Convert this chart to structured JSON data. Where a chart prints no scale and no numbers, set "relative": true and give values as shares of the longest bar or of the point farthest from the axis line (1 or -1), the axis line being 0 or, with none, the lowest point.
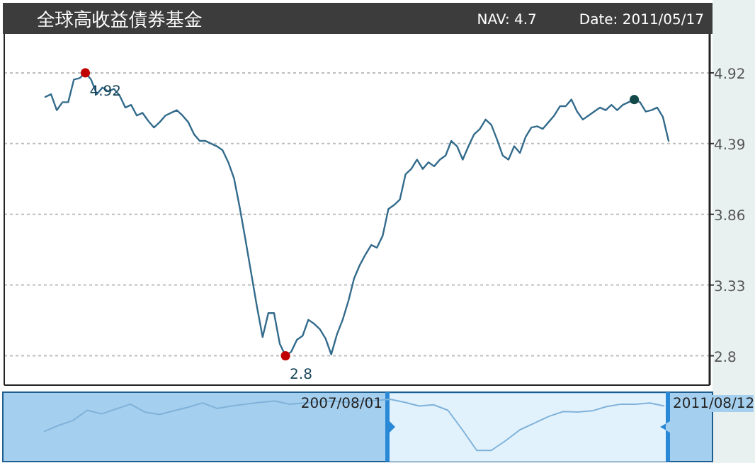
{
  "chart_data": [
    {
      "type": "line",
      "title": "全球高收益債券基金",
      "annotations": [
        "NAV: 4.7",
        "Date: 2011/05/17"
      ],
      "categories": [
        null,
        null,
        null,
        null,
        null,
        null,
        null,
        null,
        null,
        null,
        null,
        null,
        null,
        null,
        null,
        null,
        null,
        null,
        null,
        null,
        null,
        null,
        null,
        null,
        null,
        null,
        null,
        null,
        null,
        null,
        null,
        null,
        null,
        null,
        null,
        null,
        null,
        null,
        null,
        null,
        null,
        null,
        null,
        null,
        null,
        null,
        null,
        null,
        null,
        null,
        null,
        null,
        null,
        null,
        null,
        null,
        null,
        null,
        null,
        null,
        null,
        null,
        null,
        null,
        null,
        null,
        null,
        null,
        null,
        null,
        null,
        null,
        null,
        null,
        null,
        null,
        null,
        null,
        null,
        null,
        null,
        null,
        null,
        null,
        null,
        null,
        null,
        null,
        null,
        null,
        null,
        null,
        null,
        null,
        null,
        null,
        null,
        null,
        null,
        null,
        null,
        null,
        null,
        null,
        null,
        null,
        null,
        null,
        null,
        null
      ],
      "series": [
        {
          "color": "#336b8c",
          "values": [
            4.74,
            4.76,
            4.64,
            4.7,
            4.7,
            4.87,
            4.88,
            4.92,
            4.87,
            4.76,
            4.81,
            4.78,
            4.8,
            4.75,
            4.66,
            4.68,
            4.6,
            4.62,
            4.56,
            4.51,
            4.55,
            4.6,
            4.62,
            4.64,
            4.6,
            4.55,
            4.46,
            4.41,
            4.41,
            4.39,
            4.37,
            4.34,
            4.25,
            4.13,
            3.91,
            3.67,
            3.42,
            3.17,
            2.94,
            3.12,
            3.12,
            2.89,
            2.8,
            2.83,
            2.92,
            2.95,
            3.07,
            3.04,
            3.0,
            2.93,
            2.81,
            2.96,
            3.07,
            3.21,
            3.38,
            3.48,
            3.56,
            3.63,
            3.61,
            3.7,
            3.9,
            3.93,
            3.97,
            4.16,
            4.2,
            4.27,
            4.2,
            4.25,
            4.22,
            4.27,
            4.3,
            4.41,
            4.37,
            4.27,
            4.37,
            4.46,
            4.5,
            4.57,
            4.53,
            4.42,
            4.3,
            4.27,
            4.37,
            4.32,
            4.44,
            4.51,
            4.52,
            4.5,
            4.55,
            4.6,
            4.67,
            4.67,
            4.72,
            4.63,
            4.57,
            4.6,
            4.63,
            4.66,
            4.64,
            4.68,
            4.64,
            4.68,
            4.7,
            4.72,
            4.7,
            4.63,
            4.64,
            4.66,
            4.59,
            4.41
          ]
        },
        {
          "type": "scatter",
          "values": [
            null,
            null,
            null,
            null,
            null,
            null,
            null,
            4.92,
            null,
            null,
            null,
            null,
            null,
            null,
            null,
            null,
            null,
            null,
            null,
            null,
            null,
            null,
            null,
            null,
            null,
            null,
            null,
            null,
            null,
            null,
            null,
            null,
            null,
            null,
            null,
            null,
            null,
            null,
            null,
            null,
            null,
            null,
            2.8,
            null,
            null,
            null,
            null,
            null,
            null,
            null,
            null,
            null,
            null,
            null,
            null,
            null,
            null,
            null,
            null,
            null,
            null,
            null,
            null,
            null,
            null,
            null,
            null,
            null,
            null,
            null,
            null,
            null,
            null,
            null,
            null,
            null,
            null,
            null,
            null,
            null,
            null,
            null,
            null,
            null,
            null,
            null,
            null,
            null,
            null,
            null,
            null,
            null,
            null,
            null,
            null,
            null,
            null,
            null,
            null,
            null,
            null,
            null,
            null,
            4.72,
            null,
            null,
            null,
            null,
            null,
            null
          ],
          "colors": [
            null,
            null,
            null,
            null,
            null,
            null,
            null,
            "#c00000",
            null,
            null,
            null,
            null,
            null,
            null,
            null,
            null,
            null,
            null,
            null,
            null,
            null,
            null,
            null,
            null,
            null,
            null,
            null,
            null,
            null,
            null,
            null,
            null,
            null,
            null,
            null,
            null,
            null,
            null,
            null,
            null,
            null,
            null,
            "#c00000",
            null,
            null,
            null,
            null,
            null,
            null,
            null,
            null,
            null,
            null,
            null,
            null,
            null,
            null,
            null,
            null,
            null,
            null,
            null,
            null,
            null,
            null,
            null,
            null,
            null,
            null,
            null,
            null,
            null,
            null,
            null,
            null,
            null,
            null,
            null,
            null,
            null,
            null,
            null,
            null,
            null,
            null,
            null,
            null,
            null,
            null,
            null,
            null,
            null,
            null,
            null,
            null,
            null,
            null,
            null,
            null,
            null,
            null,
            null,
            null,
            "#124848",
            null,
            null,
            null,
            null,
            null,
            null
          ],
          "value_labels": [
            null,
            null,
            null,
            null,
            null,
            null,
            null,
            "4.92",
            null,
            null,
            null,
            null,
            null,
            null,
            null,
            null,
            null,
            null,
            null,
            null,
            null,
            null,
            null,
            null,
            null,
            null,
            null,
            null,
            null,
            null,
            null,
            null,
            null,
            null,
            null,
            null,
            null,
            null,
            null,
            null,
            null,
            null,
            "2.8",
            null,
            null,
            null,
            null,
            null,
            null,
            null,
            null,
            null,
            null,
            null,
            null,
            null,
            null,
            null,
            null,
            null,
            null,
            null,
            null,
            null,
            null,
            null,
            null,
            null,
            null,
            null,
            null,
            null,
            null,
            null,
            null,
            null,
            null,
            null,
            null,
            null,
            null,
            null,
            null,
            null,
            null,
            null,
            null,
            null,
            null,
            null,
            null,
            null,
            null,
            null,
            null,
            null,
            null,
            null,
            null,
            null,
            null,
            null,
            null,
            null,
            null,
            null,
            null,
            null,
            null,
            null
          ]
        }
      ],
      "ylim": [
        2.58,
        5.19
      ],
      "yticks": [
        2.8,
        3.33,
        3.86,
        4.39,
        4.92
      ],
      "grid": "y"
    },
    {
      "type": "line",
      "relative": true,
      "color": "#7fb2da",
      "annotations": [
        "2007/08/01",
        "2011/08/12"
      ],
      "categories": [
        null,
        null,
        null,
        null,
        null,
        null,
        null,
        null,
        null,
        null,
        null,
        null,
        null,
        null,
        null,
        null,
        null,
        null,
        null,
        null,
        null,
        null,
        null,
        null,
        null,
        null,
        null,
        null,
        null,
        null,
        null,
        null,
        null,
        null,
        null,
        null,
        null,
        null,
        null,
        null,
        null,
        null,
        null,
        null
      ],
      "values": [
        0.47,
        0.57,
        0.65,
        0.82,
        0.76,
        0.84,
        0.92,
        0.79,
        0.75,
        0.81,
        0.87,
        0.94,
        0.85,
        0.89,
        0.92,
        0.95,
        0.97,
        0.92,
        0.94,
        0.96,
        0.97,
        0.95,
        0.97,
        0.98,
        1,
        0.95,
        0.89,
        0.91,
        0.82,
        0.5,
        0.16,
        0.16,
        0.32,
        0.5,
        0.61,
        0.72,
        0.8,
        0.79,
        0.81,
        0.88,
        0.92,
        0.92,
        0.94,
        0.89
      ]
    }
  ]
}
